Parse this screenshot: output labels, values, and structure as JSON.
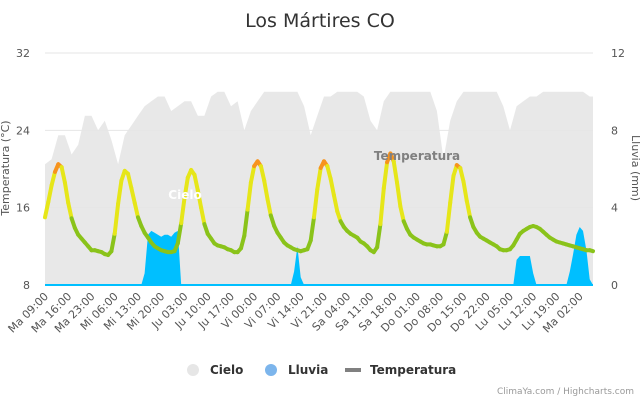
{
  "title": "Los Mártires CO",
  "credits": "ClimaYa.com / Highcharts.com",
  "legend": {
    "placement": "bottom-center",
    "items": [
      {
        "key": "cielo",
        "label": "Cielo",
        "color": "#e6e6e6",
        "symbol": "circle"
      },
      {
        "key": "lluvia",
        "label": "Lluvia",
        "color": "#7cb5ec",
        "symbol": "circle"
      },
      {
        "key": "temperatura",
        "label": "Temperatura",
        "color": "#808080",
        "symbol": "line"
      }
    ]
  },
  "chart_data": {
    "type": "line",
    "x_ticks": [
      "Ma 09:00",
      "Ma 16:00",
      "Ma 23:00",
      "Mi 06:00",
      "Mi 13:00",
      "Mi 20:00",
      "Ju 03:00",
      "Ju 10:00",
      "Ju 17:00",
      "Vi 00:00",
      "Vi 07:00",
      "Vi 14:00",
      "Vi 21:00",
      "Sa 04:00",
      "Sa 11:00",
      "Sa 18:00",
      "Do 01:00",
      "Do 08:00",
      "Do 15:00",
      "Do 22:00",
      "Lu 05:00",
      "Lu 12:00",
      "Lu 19:00",
      "Ma 02:00"
    ],
    "x_range_hours": [
      0,
      165
    ],
    "y_left": {
      "label": "Temperatura (°C)",
      "range": [
        8,
        32
      ],
      "ticks": [
        8,
        16,
        24,
        32
      ]
    },
    "y_right": {
      "label": "Lluvia (mm)",
      "range": [
        0,
        12
      ],
      "ticks": [
        0,
        4,
        8,
        12
      ]
    },
    "grid": true,
    "annotations": [
      {
        "text": "Cielo",
        "series": "cielo",
        "color": "#ffffff"
      },
      {
        "text": "Temperatura",
        "series": "temperatura",
        "color": "#808080"
      }
    ],
    "series": [
      {
        "name": "Temperatura",
        "axis": "left",
        "color_scale": {
          "low": "#8ac31a",
          "mid": "#e6e619",
          "high": "#f7931e"
        },
        "x": [
          0,
          1,
          2,
          3,
          4,
          5,
          6,
          7,
          8,
          9,
          10,
          11,
          12,
          13,
          14,
          15,
          16,
          17,
          18,
          19,
          20,
          21,
          22,
          23,
          24,
          25,
          26,
          27,
          28,
          29,
          30,
          31,
          32,
          33,
          34,
          35,
          36,
          37,
          38,
          39,
          40,
          41,
          42,
          43,
          44,
          45,
          46,
          47,
          48,
          49,
          50,
          51,
          52,
          53,
          54,
          55,
          56,
          57,
          58,
          59,
          60,
          61,
          62,
          63,
          64,
          65,
          66,
          67,
          68,
          69,
          70,
          71,
          72,
          73,
          74,
          75,
          76,
          77,
          78,
          79,
          80,
          81,
          82,
          83,
          84,
          85,
          86,
          87,
          88,
          89,
          90,
          91,
          92,
          93,
          94,
          95,
          96,
          97,
          98,
          99,
          100,
          101,
          102,
          103,
          104,
          105,
          106,
          107,
          108,
          109,
          110,
          111,
          112,
          113,
          114,
          115,
          116,
          117,
          118,
          119,
          120,
          121,
          122,
          123,
          124,
          125,
          126,
          127,
          128,
          129,
          130,
          131,
          132,
          133,
          134,
          135,
          136,
          137,
          138,
          139,
          140,
          141,
          142,
          143,
          144,
          145,
          146,
          147,
          148,
          149,
          150,
          151,
          152,
          153,
          154,
          155,
          156,
          157,
          158,
          159,
          160,
          161,
          162,
          163,
          164,
          165
        ],
        "values": [
          15.0,
          16.6,
          18.3,
          19.7,
          20.5,
          20.2,
          18.6,
          16.5,
          14.9,
          13.9,
          13.2,
          12.8,
          12.4,
          12.0,
          11.6,
          11.6,
          11.5,
          11.4,
          11.2,
          11.1,
          11.5,
          13.3,
          16.4,
          18.8,
          19.8,
          19.5,
          18.0,
          16.5,
          15.0,
          14.1,
          13.4,
          12.9,
          12.4,
          12.0,
          11.8,
          11.6,
          11.5,
          11.4,
          11.4,
          11.5,
          12.3,
          14.4,
          17.0,
          19.1,
          19.9,
          19.4,
          17.8,
          16.0,
          14.3,
          13.3,
          12.8,
          12.3,
          12.1,
          12.0,
          11.9,
          11.7,
          11.6,
          11.4,
          11.4,
          11.8,
          13.1,
          15.8,
          18.6,
          20.3,
          20.8,
          20.3,
          18.8,
          16.9,
          15.2,
          14.1,
          13.4,
          12.9,
          12.4,
          12.1,
          11.9,
          11.7,
          11.6,
          11.5,
          11.6,
          11.7,
          12.6,
          15.0,
          17.9,
          20.1,
          20.8,
          20.3,
          19.0,
          17.3,
          15.6,
          14.6,
          14.0,
          13.6,
          13.3,
          13.1,
          12.9,
          12.5,
          12.3,
          12.0,
          11.6,
          11.4,
          11.9,
          14.3,
          18.0,
          20.7,
          21.6,
          20.8,
          18.6,
          16.1,
          14.6,
          13.8,
          13.2,
          12.9,
          12.7,
          12.5,
          12.3,
          12.2,
          12.2,
          12.1,
          12.0,
          12.0,
          12.2,
          13.5,
          16.5,
          19.3,
          20.4,
          20.1,
          18.7,
          16.7,
          15.0,
          14.0,
          13.4,
          13.0,
          12.8,
          12.6,
          12.4,
          12.2,
          12.0,
          11.7,
          11.6,
          11.6,
          11.7,
          12.1,
          12.7,
          13.3,
          13.6,
          13.8,
          14.0,
          14.1,
          14.0,
          13.8,
          13.5,
          13.2,
          12.9,
          12.7,
          12.5,
          12.4,
          12.3,
          12.2,
          12.1,
          12.0,
          11.9,
          11.8,
          11.7,
          11.6,
          11.6,
          11.5
        ]
      },
      {
        "name": "Cielo",
        "axis": "left",
        "type": "area",
        "color": "#e6e6e6",
        "x": [
          0,
          2,
          4,
          6,
          8,
          10,
          12,
          14,
          16,
          18,
          20,
          22,
          24,
          26,
          28,
          30,
          32,
          34,
          36,
          38,
          40,
          42,
          44,
          46,
          48,
          50,
          52,
          54,
          56,
          58,
          60,
          62,
          64,
          66,
          68,
          70,
          72,
          74,
          76,
          78,
          80,
          82,
          84,
          86,
          88,
          90,
          92,
          94,
          96,
          98,
          100,
          102,
          104,
          106,
          108,
          110,
          112,
          114,
          116,
          118,
          120,
          122,
          124,
          126,
          128,
          130,
          132,
          134,
          136,
          138,
          140,
          142,
          144,
          146,
          148,
          150,
          152,
          154,
          156,
          158,
          160,
          162,
          164,
          165
        ],
        "values": [
          20.5,
          21.0,
          23.5,
          23.5,
          21.5,
          22.5,
          25.5,
          25.5,
          24.0,
          25.0,
          23.0,
          20.5,
          23.5,
          24.5,
          25.5,
          26.5,
          27.0,
          27.5,
          27.5,
          26.0,
          26.5,
          27.0,
          27.0,
          25.5,
          25.5,
          27.5,
          28.0,
          28.0,
          26.5,
          27.0,
          24.0,
          26.0,
          27.0,
          28.0,
          28.0,
          28.0,
          28.0,
          28.0,
          28.0,
          26.5,
          23.5,
          25.5,
          27.5,
          27.5,
          28.0,
          28.0,
          28.0,
          28.0,
          27.5,
          25.0,
          24.0,
          27.0,
          28.0,
          28.0,
          28.0,
          28.0,
          28.0,
          28.0,
          28.0,
          26.0,
          21.0,
          25.0,
          27.0,
          28.0,
          28.0,
          28.0,
          28.0,
          28.0,
          28.0,
          26.5,
          24.0,
          26.5,
          27.0,
          27.5,
          27.5,
          28.0,
          28.0,
          28.0,
          28.0,
          28.0,
          28.0,
          28.0,
          27.5,
          27.5
        ]
      },
      {
        "name": "Lluvia",
        "axis": "right",
        "type": "area",
        "color": "#00bfff",
        "x": [
          0,
          29,
          30,
          31,
          32,
          33,
          34,
          35,
          36,
          37,
          38,
          39,
          40,
          41,
          74,
          75,
          76,
          77,
          78,
          140,
          141,
          142,
          143,
          144,
          145,
          146,
          147,
          148,
          149,
          150,
          151,
          152,
          153,
          154,
          155,
          156,
          157,
          158,
          159,
          160,
          161,
          162,
          163,
          164,
          165
        ],
        "values": [
          0,
          0,
          0.6,
          2.6,
          2.8,
          2.7,
          2.6,
          2.5,
          2.6,
          2.6,
          2.5,
          2.7,
          2.8,
          0,
          0,
          0.7,
          2.0,
          0.4,
          0,
          0,
          0,
          1.3,
          1.5,
          1.5,
          1.5,
          1.5,
          0.6,
          0,
          0,
          0,
          0,
          0,
          0,
          0,
          0,
          0,
          0,
          0.7,
          1.6,
          2.6,
          3.0,
          2.8,
          1.8,
          0.3,
          0
        ]
      }
    ]
  }
}
